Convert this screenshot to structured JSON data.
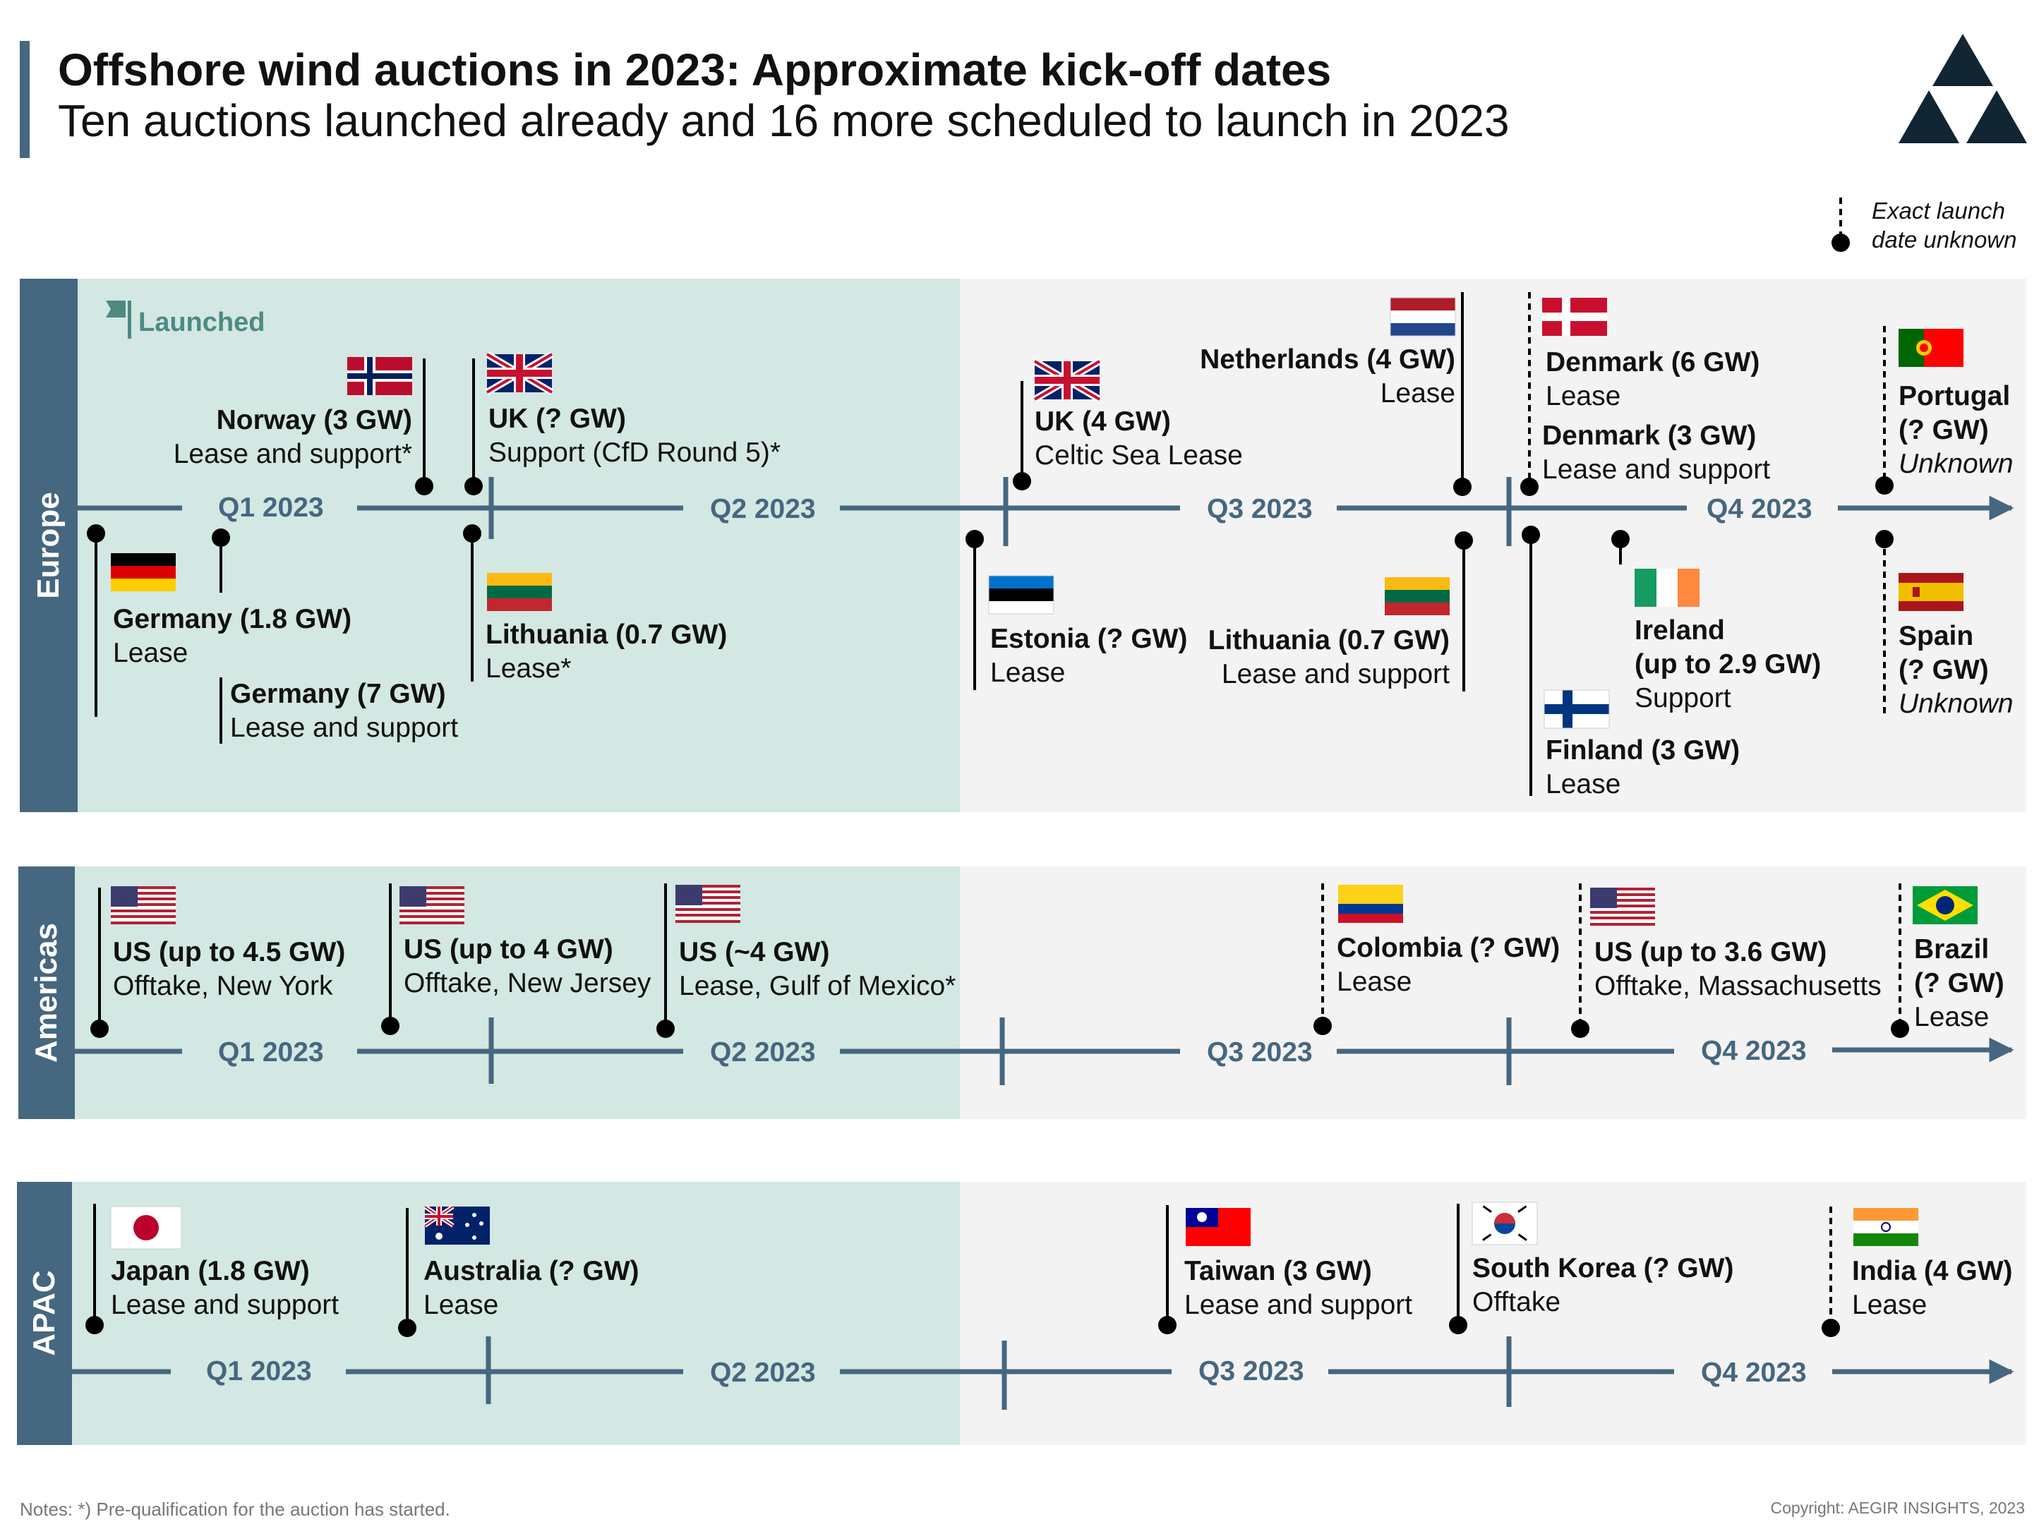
{
  "title": "Offshore wind auctions in 2023: Approximate kick-off dates",
  "subtitle": "Ten auctions launched already and 16 more scheduled to launch in 2023",
  "legend": {
    "line1": "Exact launch",
    "line2": "date unknown"
  },
  "launched_label": "Launched",
  "notes": "Notes: *) Pre-qualification for the auction has started.",
  "copyright": "Copyright: AEGIR INSIGHTS, 2023",
  "quarters": [
    "Q1 2023",
    "Q2 2023",
    "Q3 2023",
    "Q4 2023"
  ],
  "regions": [
    {
      "name": "Europe",
      "entries": [
        {
          "name": "Norway (3 GW)",
          "type": "Lease and support*",
          "flag": "norway-flag"
        },
        {
          "name": "UK (? GW)",
          "type": "Support (CfD Round 5)*",
          "flag": "uk-flag"
        },
        {
          "name": "Germany (1.8 GW)",
          "type": "Lease",
          "flag": "germany-flag"
        },
        {
          "name": "Germany (7 GW)",
          "type": "Lease and support",
          "flag": ""
        },
        {
          "name": "Lithuania (0.7 GW)",
          "type": "Lease*",
          "flag": "lithuania-flag"
        },
        {
          "name": "UK (4 GW)",
          "type": "Celtic Sea Lease",
          "flag": "uk-flag"
        },
        {
          "name": "Netherlands (4 GW)",
          "type": "Lease",
          "flag": "netherlands-flag"
        },
        {
          "name": "Estonia (? GW)",
          "type": "Lease",
          "flag": "estonia-flag"
        },
        {
          "name": "Lithuania (0.7 GW)",
          "type": "Lease and support",
          "flag": "lithuania-flag"
        },
        {
          "name": "Denmark (6 GW)",
          "type": "Lease",
          "flag": "denmark-flag"
        },
        {
          "name": "Denmark (3 GW)",
          "type": "Lease and support",
          "flag": ""
        },
        {
          "name": "Ireland",
          "name2": "(up to 2.9 GW)",
          "type": "Support",
          "flag": "ireland-flag"
        },
        {
          "name": "Finland (3 GW)",
          "type": "Lease",
          "flag": "finland-flag"
        },
        {
          "name": "Portugal",
          "name2": "(? GW)",
          "type": "Unknown",
          "flag": "portugal-flag"
        },
        {
          "name": "Spain",
          "name2": "(? GW)",
          "type": "Unknown",
          "flag": "spain-flag"
        }
      ]
    },
    {
      "name": "Americas",
      "entries": [
        {
          "name": "US (up to 4.5 GW)",
          "type": "Offtake, New York",
          "flag": "us-flag"
        },
        {
          "name": "US (up to 4 GW)",
          "type": "Offtake, New Jersey",
          "flag": "us-flag"
        },
        {
          "name": "US (~4 GW)",
          "type": "Lease, Gulf of Mexico*",
          "flag": "us-flag"
        },
        {
          "name": "Colombia (? GW)",
          "type": "Lease",
          "flag": "colombia-flag"
        },
        {
          "name": "US (up to 3.6 GW)",
          "type": "Offtake, Massachusetts",
          "flag": "us-flag"
        },
        {
          "name": "Brazil",
          "name2": "(? GW)",
          "type": "Lease",
          "flag": "brazil-flag"
        }
      ]
    },
    {
      "name": "APAC",
      "entries": [
        {
          "name": "Japan (1.8 GW)",
          "type": "Lease and support",
          "flag": "japan-flag"
        },
        {
          "name": "Australia (? GW)",
          "type": "Lease",
          "flag": "australia-flag"
        },
        {
          "name": "Taiwan (3 GW)",
          "type": "Lease and support",
          "flag": "taiwan-flag"
        },
        {
          "name": "South Korea (? GW)",
          "type": "Offtake",
          "flag": "south-korea-flag"
        },
        {
          "name": "India (4 GW)",
          "type": "Lease",
          "flag": "india-flag"
        }
      ]
    }
  ],
  "colors": {
    "accent": "#45677f",
    "launched_bg": "#d3e7e3",
    "future_bg": "#f3f3f3",
    "launched_text": "#4c8a82"
  },
  "icons": [
    "aegir-triangle-logo",
    "flag-icon"
  ]
}
